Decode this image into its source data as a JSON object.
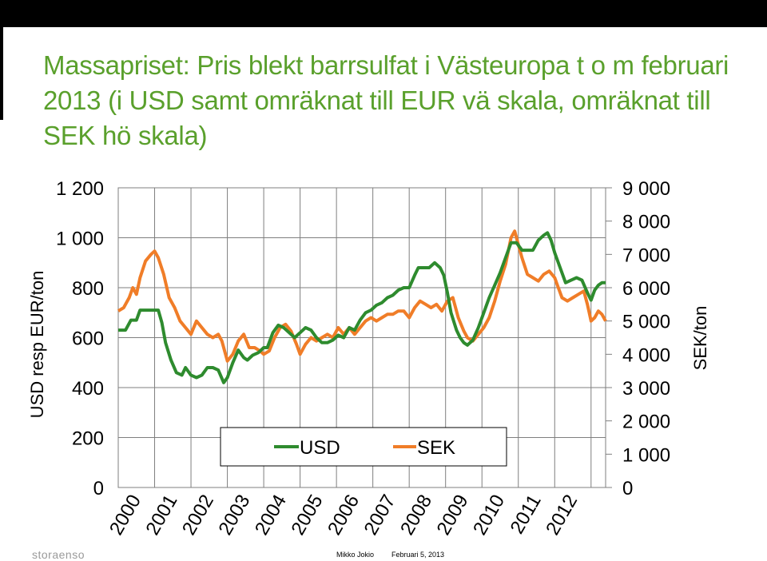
{
  "title_lines": [
    "Massapriset: Pris blekt barrsulfat i Västeuropa t o m februari",
    "2013 (i USD samt omräknat till EUR vä skala, omräknat till",
    "SEK hö skala)"
  ],
  "colors": {
    "title": "#5aa02c",
    "usd": "#2e8b2e",
    "sek": "#f07d28",
    "grid": "#7f7f7f"
  },
  "chart_data": {
    "type": "line",
    "ylabel_left": "USD resp EUR/ton",
    "ylabel_right": "SEK/ton",
    "ylim_left": [
      0,
      1200
    ],
    "ylim_right": [
      0,
      9000
    ],
    "yticks_left": [
      "0",
      "200",
      "400",
      "600",
      "800",
      "1 000",
      "1 200"
    ],
    "yticks_right": [
      "0",
      "1 000",
      "2 000",
      "3 000",
      "4 000",
      "5 000",
      "6 000",
      "7 000",
      "8 000",
      "9 000"
    ],
    "categories": [
      "2000",
      "2001",
      "2002",
      "2003",
      "2004",
      "2005",
      "2006",
      "2007",
      "2008",
      "2009",
      "2010",
      "2011",
      "2012"
    ],
    "legend": [
      "USD",
      "SEK"
    ],
    "series": [
      {
        "name": "USD",
        "axis": "left",
        "points": [
          [
            0,
            630
          ],
          [
            0.2,
            630
          ],
          [
            0.35,
            670
          ],
          [
            0.5,
            670
          ],
          [
            0.6,
            710
          ],
          [
            0.8,
            710
          ],
          [
            1.0,
            710
          ],
          [
            1.1,
            710
          ],
          [
            1.2,
            660
          ],
          [
            1.3,
            580
          ],
          [
            1.45,
            510
          ],
          [
            1.6,
            460
          ],
          [
            1.75,
            450
          ],
          [
            1.85,
            480
          ],
          [
            2.0,
            450
          ],
          [
            2.15,
            440
          ],
          [
            2.3,
            450
          ],
          [
            2.45,
            480
          ],
          [
            2.6,
            480
          ],
          [
            2.75,
            470
          ],
          [
            2.9,
            420
          ],
          [
            3.0,
            440
          ],
          [
            3.15,
            500
          ],
          [
            3.3,
            550
          ],
          [
            3.45,
            520
          ],
          [
            3.55,
            510
          ],
          [
            3.7,
            530
          ],
          [
            3.85,
            540
          ],
          [
            4.0,
            560
          ],
          [
            4.1,
            560
          ],
          [
            4.25,
            620
          ],
          [
            4.4,
            650
          ],
          [
            4.55,
            640
          ],
          [
            4.7,
            620
          ],
          [
            4.85,
            600
          ],
          [
            5.0,
            620
          ],
          [
            5.15,
            640
          ],
          [
            5.3,
            630
          ],
          [
            5.45,
            600
          ],
          [
            5.6,
            580
          ],
          [
            5.75,
            580
          ],
          [
            5.9,
            590
          ],
          [
            6.05,
            610
          ],
          [
            6.2,
            600
          ],
          [
            6.35,
            640
          ],
          [
            6.5,
            630
          ],
          [
            6.65,
            670
          ],
          [
            6.8,
            700
          ],
          [
            6.95,
            710
          ],
          [
            7.1,
            730
          ],
          [
            7.25,
            740
          ],
          [
            7.4,
            760
          ],
          [
            7.55,
            770
          ],
          [
            7.7,
            790
          ],
          [
            7.85,
            800
          ],
          [
            8.0,
            800
          ],
          [
            8.15,
            850
          ],
          [
            8.25,
            880
          ],
          [
            8.4,
            880
          ],
          [
            8.55,
            880
          ],
          [
            8.7,
            900
          ],
          [
            8.85,
            880
          ],
          [
            8.95,
            850
          ],
          [
            9.05,
            780
          ],
          [
            9.15,
            700
          ],
          [
            9.3,
            630
          ],
          [
            9.4,
            600
          ],
          [
            9.5,
            580
          ],
          [
            9.6,
            570
          ],
          [
            9.75,
            590
          ],
          [
            9.9,
            640
          ],
          [
            10.05,
            700
          ],
          [
            10.2,
            760
          ],
          [
            10.35,
            810
          ],
          [
            10.5,
            860
          ],
          [
            10.65,
            920
          ],
          [
            10.8,
            980
          ],
          [
            10.95,
            980
          ],
          [
            11.1,
            950
          ],
          [
            11.25,
            950
          ],
          [
            11.4,
            950
          ],
          [
            11.55,
            990
          ],
          [
            11.7,
            1010
          ],
          [
            11.8,
            1020
          ],
          [
            11.9,
            990
          ],
          [
            12.0,
            940
          ],
          [
            12.15,
            880
          ],
          [
            12.3,
            820
          ],
          [
            12.45,
            830
          ],
          [
            12.6,
            840
          ],
          [
            12.75,
            830
          ],
          [
            12.9,
            780
          ],
          [
            13.0,
            750
          ],
          [
            13.1,
            790
          ],
          [
            13.2,
            810
          ],
          [
            13.3,
            820
          ],
          [
            13.4,
            820
          ]
        ]
      },
      {
        "name": "SEK",
        "axis": "right",
        "points": [
          [
            0,
            5300
          ],
          [
            0.15,
            5400
          ],
          [
            0.3,
            5700
          ],
          [
            0.4,
            6000
          ],
          [
            0.5,
            5800
          ],
          [
            0.6,
            6300
          ],
          [
            0.75,
            6800
          ],
          [
            0.9,
            7000
          ],
          [
            1.0,
            7100
          ],
          [
            1.1,
            6900
          ],
          [
            1.25,
            6400
          ],
          [
            1.4,
            5700
          ],
          [
            1.55,
            5400
          ],
          [
            1.7,
            5000
          ],
          [
            1.85,
            4800
          ],
          [
            2.0,
            4600
          ],
          [
            2.15,
            5000
          ],
          [
            2.3,
            4800
          ],
          [
            2.45,
            4600
          ],
          [
            2.6,
            4500
          ],
          [
            2.75,
            4600
          ],
          [
            2.85,
            4400
          ],
          [
            3.0,
            3800
          ],
          [
            3.15,
            4000
          ],
          [
            3.3,
            4400
          ],
          [
            3.45,
            4600
          ],
          [
            3.6,
            4200
          ],
          [
            3.75,
            4200
          ],
          [
            3.9,
            4100
          ],
          [
            4.0,
            4000
          ],
          [
            4.15,
            4100
          ],
          [
            4.3,
            4500
          ],
          [
            4.45,
            4800
          ],
          [
            4.6,
            4900
          ],
          [
            4.75,
            4700
          ],
          [
            4.9,
            4300
          ],
          [
            5.0,
            4000
          ],
          [
            5.15,
            4300
          ],
          [
            5.3,
            4500
          ],
          [
            5.45,
            4400
          ],
          [
            5.6,
            4500
          ],
          [
            5.75,
            4600
          ],
          [
            5.9,
            4500
          ],
          [
            6.05,
            4800
          ],
          [
            6.2,
            4600
          ],
          [
            6.35,
            4800
          ],
          [
            6.5,
            4600
          ],
          [
            6.65,
            4800
          ],
          [
            6.8,
            5000
          ],
          [
            6.95,
            5100
          ],
          [
            7.1,
            5000
          ],
          [
            7.25,
            5100
          ],
          [
            7.4,
            5200
          ],
          [
            7.55,
            5200
          ],
          [
            7.7,
            5300
          ],
          [
            7.85,
            5300
          ],
          [
            8.0,
            5100
          ],
          [
            8.15,
            5400
          ],
          [
            8.3,
            5600
          ],
          [
            8.45,
            5500
          ],
          [
            8.6,
            5400
          ],
          [
            8.75,
            5500
          ],
          [
            8.9,
            5300
          ],
          [
            9.05,
            5600
          ],
          [
            9.2,
            5700
          ],
          [
            9.35,
            5100
          ],
          [
            9.5,
            4700
          ],
          [
            9.6,
            4500
          ],
          [
            9.75,
            4400
          ],
          [
            9.9,
            4600
          ],
          [
            10.05,
            4800
          ],
          [
            10.2,
            5100
          ],
          [
            10.35,
            5600
          ],
          [
            10.5,
            6200
          ],
          [
            10.65,
            6700
          ],
          [
            10.8,
            7500
          ],
          [
            10.9,
            7700
          ],
          [
            11.0,
            7300
          ],
          [
            11.1,
            6900
          ],
          [
            11.25,
            6400
          ],
          [
            11.4,
            6300
          ],
          [
            11.55,
            6200
          ],
          [
            11.7,
            6400
          ],
          [
            11.85,
            6500
          ],
          [
            12.0,
            6300
          ],
          [
            12.1,
            6000
          ],
          [
            12.2,
            5700
          ],
          [
            12.35,
            5600
          ],
          [
            12.5,
            5700
          ],
          [
            12.65,
            5800
          ],
          [
            12.8,
            5900
          ],
          [
            12.9,
            5500
          ],
          [
            13.0,
            5000
          ],
          [
            13.1,
            5100
          ],
          [
            13.2,
            5300
          ],
          [
            13.3,
            5200
          ],
          [
            13.4,
            5000
          ]
        ]
      }
    ]
  },
  "footer": {
    "logo": "storaenso",
    "author": "Mikko Jokio",
    "date": "Februari 5, 2013"
  }
}
